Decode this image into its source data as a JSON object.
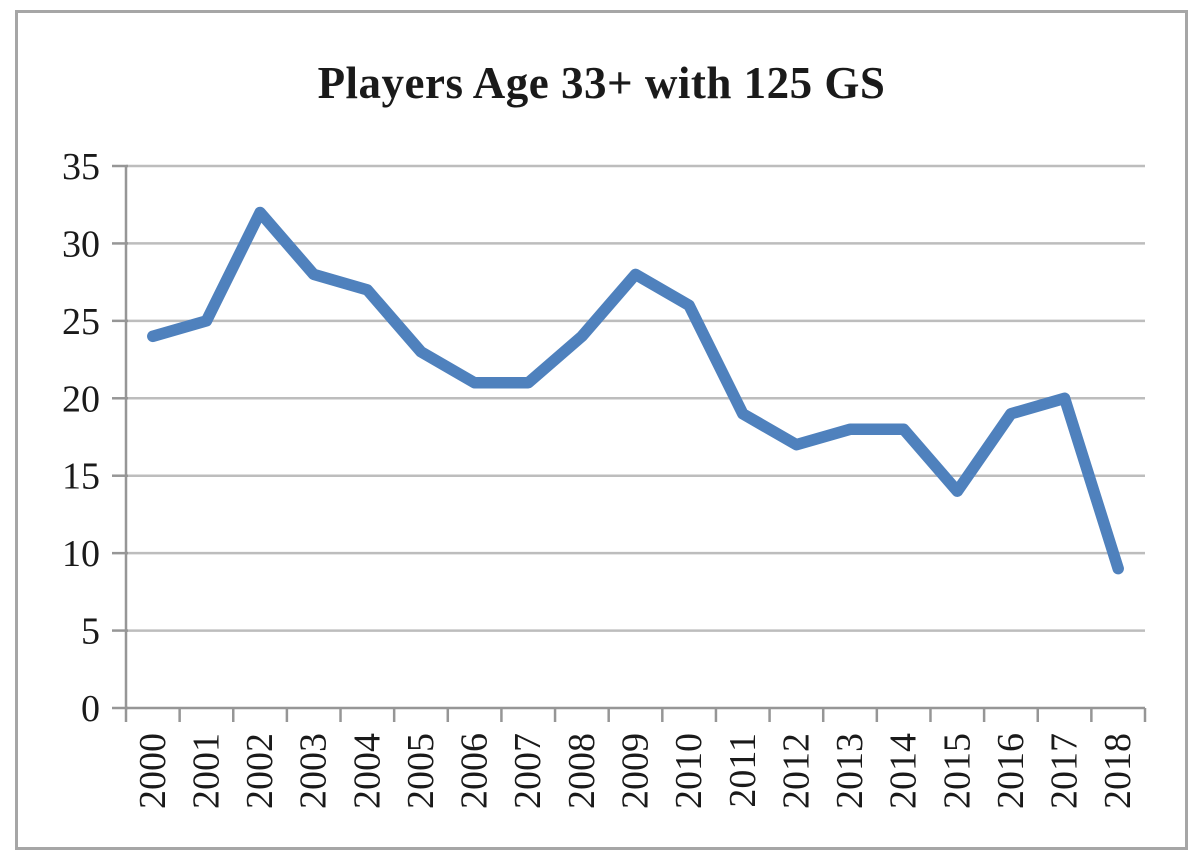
{
  "chart_data": {
    "type": "line",
    "title": "Players Age 33+ with 125 GS",
    "categories": [
      "2000",
      "2001",
      "2002",
      "2003",
      "2004",
      "2005",
      "2006",
      "2007",
      "2008",
      "2009",
      "2010",
      "2011",
      "2012",
      "2013",
      "2014",
      "2015",
      "2016",
      "2017",
      "2018"
    ],
    "series": [
      {
        "name": "Players Age 33+ with 125 GS",
        "values": [
          24,
          25,
          32,
          28,
          27,
          23,
          21,
          21,
          24,
          28,
          26,
          19,
          17,
          18,
          18,
          14,
          19,
          20,
          9
        ]
      }
    ],
    "xlabel": "",
    "ylabel": "",
    "ylim": [
      0,
      35
    ],
    "yticks": [
      0,
      5,
      10,
      15,
      20,
      25,
      30,
      35
    ],
    "grid": "horizontal",
    "legend": "none",
    "x_label_rotation": -90,
    "line_color": "#4F81BD",
    "gridline_color": "#BDBDBD",
    "axis_color": "#969696",
    "text_color": "#1A1A1A",
    "frame_border_color": "#A6A6A6",
    "background": "#FFFFFF"
  }
}
